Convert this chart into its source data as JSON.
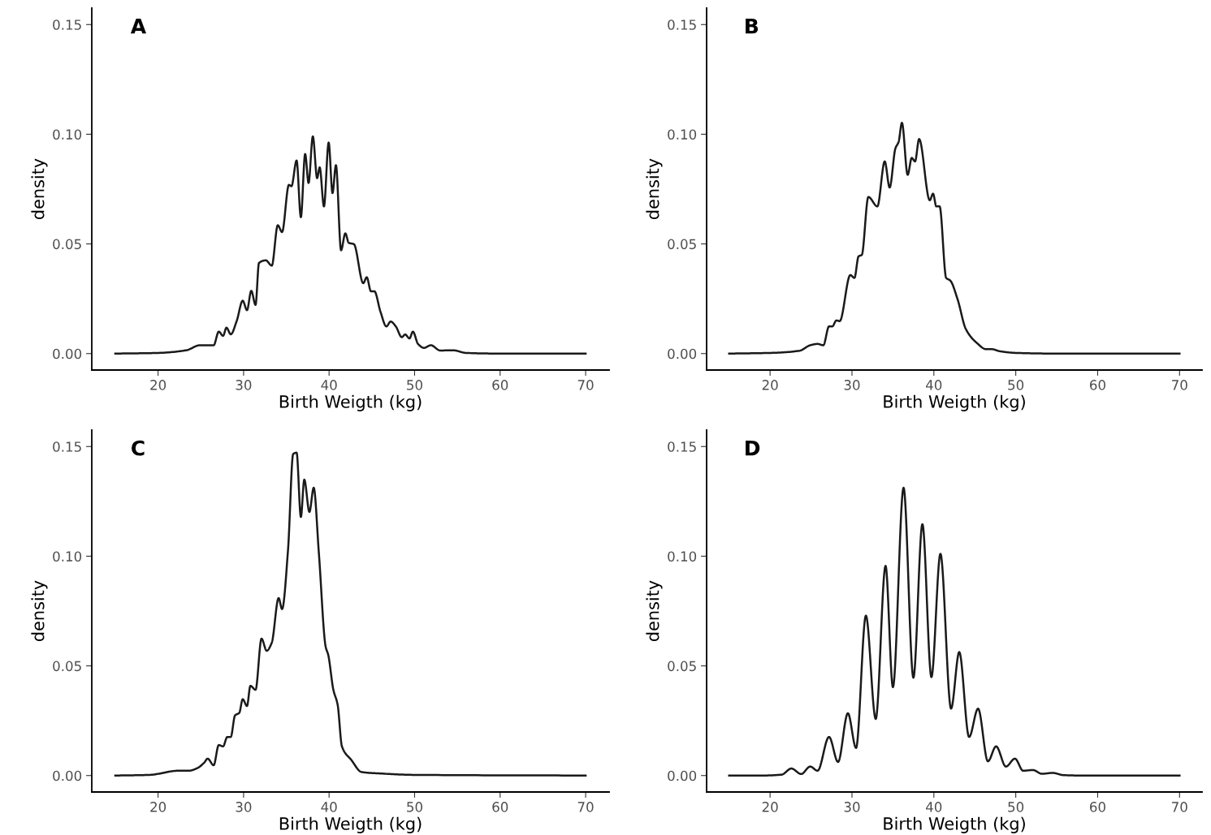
{
  "chart_data": [
    {
      "type": "line",
      "title": "A",
      "xlabel": "Birth Weigth (kg)",
      "ylabel": "density",
      "xlim": [
        12.25,
        72.75
      ],
      "ylim": [
        -0.0075,
        0.1575
      ],
      "xticks": [
        20,
        30,
        40,
        50,
        60,
        70
      ],
      "yticks": [
        {
          "value": 0,
          "label": "0.00"
        },
        {
          "value": 0.05,
          "label": "0.05"
        },
        {
          "value": 0.1,
          "label": "0.10"
        },
        {
          "value": 0.15,
          "label": "0.15"
        }
      ],
      "grid": false,
      "legend": false,
      "series": [
        {
          "color": "#1a1a1a",
          "x": [
            15,
            20,
            23.3,
            24.9,
            26.5,
            27.1,
            27.6,
            28.0,
            28.5,
            29.2,
            29.9,
            30.4,
            30.9,
            31.4,
            31.8,
            32.6,
            33.3,
            34.0,
            34.5,
            35.3,
            35.6,
            36.2,
            36.7,
            37.2,
            37.6,
            38.1,
            38.6,
            38.9,
            39.4,
            39.95,
            40.4,
            40.8,
            41.4,
            41.9,
            42.3,
            42.9,
            44.0,
            44.4,
            44.9,
            45.3,
            46.0,
            46.7,
            47.2,
            47.8,
            48.5,
            48.9,
            49.4,
            49.8,
            50.4,
            51.1,
            51.9,
            53.0,
            54.5,
            56,
            60,
            70
          ],
          "values": [
            0,
            0.0003,
            0.0015,
            0.0038,
            0.0038,
            0.01,
            0.0081,
            0.0118,
            0.0088,
            0.0149,
            0.0241,
            0.0198,
            0.0286,
            0.0222,
            0.0413,
            0.0425,
            0.0401,
            0.0585,
            0.0554,
            0.0769,
            0.0763,
            0.088,
            0.0622,
            0.091,
            0.0778,
            0.099,
            0.08,
            0.0849,
            0.0671,
            0.0962,
            0.0732,
            0.0859,
            0.0471,
            0.0548,
            0.0505,
            0.0499,
            0.0321,
            0.0348,
            0.0284,
            0.0284,
            0.0192,
            0.0124,
            0.0146,
            0.0124,
            0.0075,
            0.0087,
            0.0069,
            0.01,
            0.0044,
            0.0026,
            0.0038,
            0.0014,
            0.0015,
            0.0003,
            0,
            0
          ]
        }
      ]
    },
    {
      "type": "line",
      "title": "B",
      "xlabel": "Birth Weigth (kg)",
      "ylabel": "density",
      "xlim": [
        12.25,
        72.75
      ],
      "ylim": [
        -0.0075,
        0.1575
      ],
      "xticks": [
        20,
        30,
        40,
        50,
        60,
        70
      ],
      "yticks": [
        {
          "value": 0,
          "label": "0.00"
        },
        {
          "value": 0.05,
          "label": "0.05"
        },
        {
          "value": 0.1,
          "label": "0.10"
        },
        {
          "value": 0.15,
          "label": "0.15"
        }
      ],
      "grid": false,
      "legend": false,
      "series": [
        {
          "color": "#1a1a1a",
          "x": [
            15,
            20,
            23.6,
            24.9,
            25.8,
            26.5,
            27.2,
            27.6,
            28.1,
            28.5,
            29.8,
            30.3,
            30.8,
            31.2,
            32.0,
            33.1,
            34.0,
            34.6,
            35.3,
            35.7,
            36.1,
            36.8,
            37.3,
            37.7,
            38.2,
            39.5,
            39.9,
            40.3,
            40.7,
            41.5,
            42.0,
            42.9,
            43.9,
            45.2,
            46.4,
            47.1,
            48.0,
            50,
            55,
            70
          ],
          "values": [
            0,
            0.0003,
            0.0013,
            0.0038,
            0.0044,
            0.0038,
            0.0124,
            0.0124,
            0.0151,
            0.0148,
            0.0358,
            0.0345,
            0.0443,
            0.045,
            0.0714,
            0.0671,
            0.0876,
            0.0757,
            0.0935,
            0.0966,
            0.1052,
            0.0815,
            0.0892,
            0.0876,
            0.0978,
            0.0699,
            0.0729,
            0.0671,
            0.0671,
            0.0345,
            0.0333,
            0.0247,
            0.0112,
            0.005,
            0.002,
            0.002,
            0.0011,
            0.0003,
            0,
            0
          ]
        }
      ]
    },
    {
      "type": "line",
      "title": "C",
      "xlabel": "Birth Weigth (kg)",
      "ylabel": "density",
      "xlim": [
        12.25,
        72.75
      ],
      "ylim": [
        -0.0075,
        0.1575
      ],
      "xticks": [
        20,
        30,
        40,
        50,
        60,
        70
      ],
      "yticks": [
        {
          "value": 0,
          "label": "0.00"
        },
        {
          "value": 0.05,
          "label": "0.05"
        },
        {
          "value": 0.1,
          "label": "0.10"
        },
        {
          "value": 0.15,
          "label": "0.15"
        }
      ],
      "grid": false,
      "legend": false,
      "series": [
        {
          "color": "#1a1a1a",
          "x": [
            15,
            19,
            22.4,
            23.6,
            24.6,
            25.4,
            25.8,
            26.5,
            27.1,
            27.6,
            28.1,
            28.5,
            29.0,
            29.5,
            29.9,
            30.4,
            30.8,
            31.4,
            32.1,
            32.7,
            33.3,
            34.1,
            34.5,
            35.2,
            35.8,
            36.2,
            36.7,
            37.1,
            37.7,
            38.2,
            38.8,
            39.6,
            39.9,
            40.5,
            41.0,
            41.5,
            42.6,
            43.8,
            45.7,
            50,
            70
          ],
          "values": [
            0,
            0.0003,
            0.0022,
            0.0022,
            0.0034,
            0.0059,
            0.0077,
            0.0047,
            0.0139,
            0.0133,
            0.0176,
            0.0176,
            0.0274,
            0.0286,
            0.0348,
            0.0317,
            0.0409,
            0.0391,
            0.0624,
            0.0569,
            0.0606,
            0.0809,
            0.0759,
            0.103,
            0.1466,
            0.1472,
            0.1179,
            0.1349,
            0.1202,
            0.1312,
            0.1017,
            0.0587,
            0.055,
            0.0391,
            0.0323,
            0.0133,
            0.0071,
            0.0016,
            0.001,
            0.0003,
            0
          ]
        }
      ]
    },
    {
      "type": "line",
      "title": "D",
      "xlabel": "Birth Weigth (kg)",
      "ylabel": "density",
      "xlim": [
        12.25,
        72.75
      ],
      "ylim": [
        -0.0075,
        0.1575
      ],
      "xticks": [
        20,
        30,
        40,
        50,
        60,
        70
      ],
      "yticks": [
        {
          "value": 0,
          "label": "0.00"
        },
        {
          "value": 0.05,
          "label": "0.05"
        },
        {
          "value": 0.1,
          "label": "0.10"
        },
        {
          "value": 0.15,
          "label": "0.15"
        }
      ],
      "grid": false,
      "legend": false,
      "series": [
        {
          "color": "#1a1a1a",
          "x": [
            15,
            18.9,
            21.4,
            22.6,
            23.8,
            24.9,
            25.8,
            27.2,
            28.3,
            29.5,
            30.5,
            31.7,
            32.9,
            34.1,
            35.0,
            36.3,
            37.5,
            38.6,
            39.7,
            40.8,
            42.1,
            43.1,
            44.3,
            45.4,
            46.6,
            47.6,
            48.8,
            49.9,
            50.9,
            52.1,
            53.2,
            54.5,
            55.8,
            58,
            70
          ],
          "values": [
            0,
            0,
            0.0004,
            0.0032,
            0.0007,
            0.0041,
            0.0022,
            0.0176,
            0.0062,
            0.0284,
            0.0126,
            0.0729,
            0.0258,
            0.0956,
            0.0403,
            0.1312,
            0.0446,
            0.1146,
            0.0449,
            0.1011,
            0.0305,
            0.0563,
            0.0176,
            0.0305,
            0.0065,
            0.0133,
            0.0041,
            0.0077,
            0.0022,
            0.0025,
            0.0008,
            0.0012,
            0.0002,
            0,
            0
          ]
        }
      ]
    }
  ]
}
